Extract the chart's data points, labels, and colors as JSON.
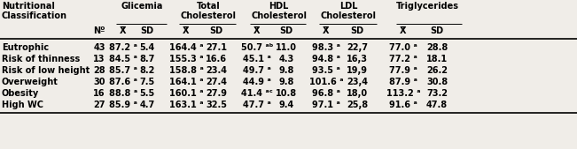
{
  "bg_color": "#f0ede8",
  "text_color": "#000000",
  "font_size": 7.0,
  "rows": [
    {
      "label": "Eutrophic",
      "n": "43",
      "gl_x": "87.2 ᵃ",
      "gl_sd": "5.4",
      "tc_x": "164.4 ᵃ",
      "tc_sd": "27.1",
      "hdl_x": "50.7 ᵃᵇ",
      "hdl_sd": "11.0",
      "ldl_x": "98.3 ᵃ",
      "ldl_sd": "22,7",
      "tri_x": "77.0 ᵃ",
      "tri_sd": "28.8"
    },
    {
      "label": "Risk of thinness",
      "n": "13",
      "gl_x": "84.5 ᵃ",
      "gl_sd": "8.7",
      "tc_x": "155.3 ᵃ",
      "tc_sd": "16.6",
      "hdl_x": "45.1 ᵃ",
      "hdl_sd": "4.3",
      "ldl_x": "94.8 ᵃ",
      "ldl_sd": "16,3",
      "tri_x": "77.2 ᵃ",
      "tri_sd": "18.1"
    },
    {
      "label": "Risk of low height",
      "n": "28",
      "gl_x": "85.7 ᵃ",
      "gl_sd": "8.2",
      "tc_x": "158.8 ᵃ",
      "tc_sd": "23.4",
      "hdl_x": "49.7 ᵃ",
      "hdl_sd": "9.8",
      "ldl_x": "93.5 ᵃ",
      "ldl_sd": "19,9",
      "tri_x": "77.9 ᵃ",
      "tri_sd": "26.2"
    },
    {
      "label": "Overweight",
      "n": "30",
      "gl_x": "87.6 ᵃ",
      "gl_sd": "7.5",
      "tc_x": "164.1 ᵃ",
      "tc_sd": "27.4",
      "hdl_x": "44.9 ᵃ",
      "hdl_sd": "9.8",
      "ldl_x": "101.6 ᵃ",
      "ldl_sd": "23,4",
      "tri_x": "87.9 ᵃ",
      "tri_sd": "30.8"
    },
    {
      "label": "Obesity",
      "n": "16",
      "gl_x": "88.8 ᵃ",
      "gl_sd": "5.5",
      "tc_x": "160.1 ᵃ",
      "tc_sd": "27.9",
      "hdl_x": "41.4 ᵃᶜ",
      "hdl_sd": "10.8",
      "ldl_x": "96.8 ᵃ",
      "ldl_sd": "18,0",
      "tri_x": "113.2 ᵃ",
      "tri_sd": "73.2"
    },
    {
      "label": "High WC",
      "n": "27",
      "gl_x": "85.9 ᵃ",
      "gl_sd": "4.7",
      "tc_x": "163.1 ᵃ",
      "tc_sd": "32.5",
      "hdl_x": "47.7 ᵃ",
      "hdl_sd": "9.4",
      "ldl_x": "97.1 ᵃ",
      "ldl_sd": "25,8",
      "tri_x": "91.6 ᵃ",
      "tri_sd": "47.8"
    }
  ]
}
